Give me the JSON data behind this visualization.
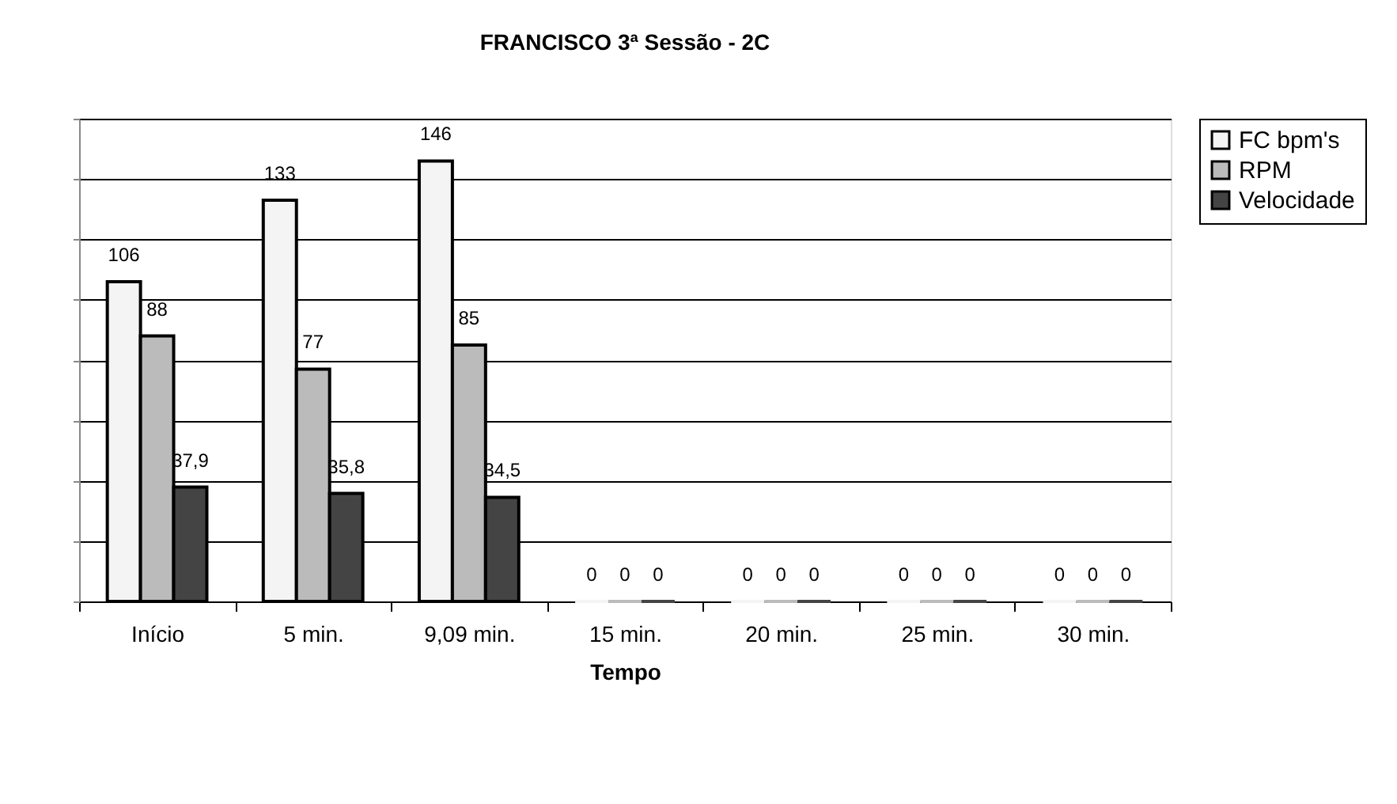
{
  "chart_data": {
    "type": "bar",
    "title": "FRANCISCO 3ª Sessão - 2C",
    "xlabel": "Tempo",
    "categories": [
      "Início",
      "5 min.",
      "9,09 min.",
      "15 min.",
      "20 min.",
      "25 min.",
      "30 min."
    ],
    "series": [
      {
        "name": "FC bpm's",
        "color": "#f4f4f4",
        "values": [
          106,
          133,
          146,
          0,
          0,
          0,
          0
        ],
        "value_labels": [
          "106",
          "133",
          "146",
          "0",
          "0",
          "0",
          "0"
        ]
      },
      {
        "name": "RPM",
        "color": "#bbbbbb",
        "values": [
          88,
          77,
          85,
          0,
          0,
          0,
          0
        ],
        "value_labels": [
          "88",
          "77",
          "85",
          "0",
          "0",
          "0",
          "0"
        ]
      },
      {
        "name": "Velocidade",
        "color": "#444444",
        "values": [
          37.9,
          35.8,
          34.5,
          0,
          0,
          0,
          0
        ],
        "value_labels": [
          "37,9",
          "35,8",
          "34,5",
          "0",
          "0",
          "0",
          "0"
        ]
      }
    ],
    "ylim": [
      0,
      160
    ],
    "yticks": [
      0,
      {
        "value": 20,
        "label": null
      },
      {
        "value": 40,
        "label": null
      },
      {
        "value": 60,
        "label": null
      },
      {
        "value": 80,
        "label": null
      },
      {
        "value": 100,
        "label": null
      },
      {
        "value": 120,
        "label": null
      },
      {
        "value": 140,
        "label": null
      },
      {
        "value": 160,
        "label": null
      }
    ],
    "tick_labels": "x",
    "grid": "y",
    "legend": "right"
  }
}
